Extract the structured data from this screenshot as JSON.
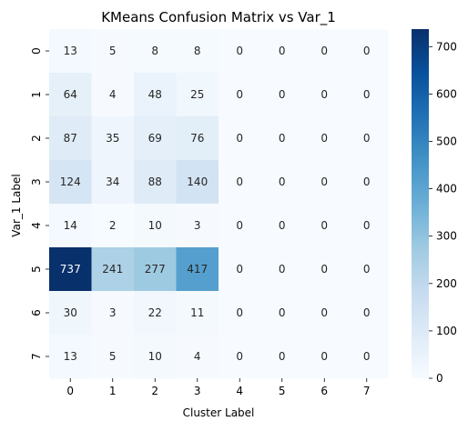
{
  "chart_data": {
    "type": "heatmap",
    "title": "KMeans Confusion Matrix vs Var_1",
    "xlabel": "Cluster Label",
    "ylabel": "Var_1 Label",
    "x_categories": [
      "0",
      "1",
      "2",
      "3",
      "4",
      "5",
      "6",
      "7"
    ],
    "y_categories": [
      "0",
      "1",
      "2",
      "3",
      "4",
      "5",
      "6",
      "7"
    ],
    "values": [
      [
        13,
        5,
        8,
        8,
        0,
        0,
        0,
        0
      ],
      [
        64,
        4,
        48,
        25,
        0,
        0,
        0,
        0
      ],
      [
        87,
        35,
        69,
        76,
        0,
        0,
        0,
        0
      ],
      [
        124,
        34,
        88,
        140,
        0,
        0,
        0,
        0
      ],
      [
        14,
        2,
        10,
        3,
        0,
        0,
        0,
        0
      ],
      [
        737,
        241,
        277,
        417,
        0,
        0,
        0,
        0
      ],
      [
        30,
        3,
        22,
        11,
        0,
        0,
        0,
        0
      ],
      [
        13,
        5,
        10,
        4,
        0,
        0,
        0,
        0
      ]
    ],
    "colormap": "Blues",
    "vmin": 0,
    "vmax": 737,
    "colorbar_ticks": [
      "0",
      "100",
      "200",
      "300",
      "400",
      "500",
      "600",
      "700"
    ],
    "annotated": true
  }
}
